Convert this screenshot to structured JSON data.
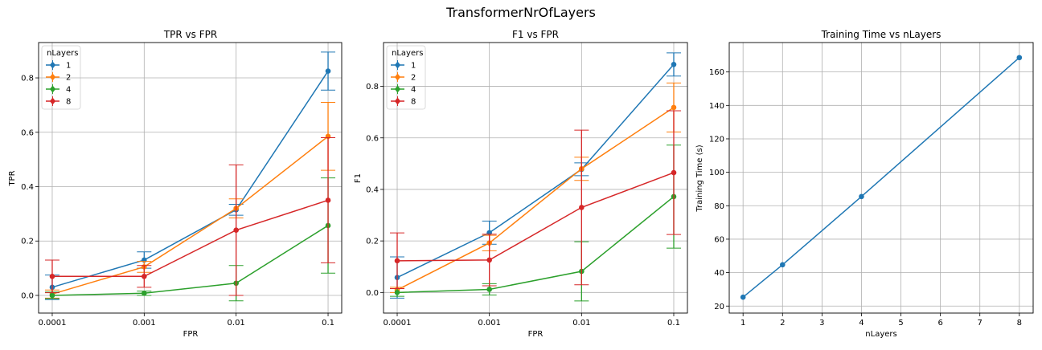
{
  "figure": {
    "title": "TransformerNrOfLayers"
  },
  "chart_data": [
    {
      "type": "line",
      "title": "TPR vs FPR",
      "xlabel": "FPR",
      "ylabel": "TPR",
      "x_ticks": [
        "0.0001",
        "0.001",
        "0.01",
        "0.1"
      ],
      "x": [
        0.0001,
        0.001,
        0.01,
        0.1
      ],
      "y_ticks": [
        0.0,
        0.2,
        0.4,
        0.6,
        0.8
      ],
      "y_tick_labels": [
        "0.0",
        "0.2",
        "0.4",
        "0.6",
        "0.8"
      ],
      "ylim": [
        -0.065,
        0.93
      ],
      "grid": true,
      "legend": {
        "title": "nLayers",
        "placement": "top-left"
      },
      "series": [
        {
          "name": "1",
          "color": "#1f77b4",
          "values": [
            0.03,
            0.13,
            0.315,
            0.825
          ],
          "err": [
            0.045,
            0.03,
            0.02,
            0.07
          ]
        },
        {
          "name": "2",
          "color": "#ff7f0e",
          "values": [
            0.005,
            0.105,
            0.32,
            0.585
          ],
          "err": [
            0.015,
            0.02,
            0.035,
            0.125
          ]
        },
        {
          "name": "4",
          "color": "#2ca02c",
          "values": [
            0.0,
            0.008,
            0.045,
            0.257
          ],
          "err": [
            0.012,
            0.008,
            0.065,
            0.175
          ]
        },
        {
          "name": "8",
          "color": "#d62728",
          "values": [
            0.07,
            0.07,
            0.24,
            0.35
          ],
          "err": [
            0.06,
            0.04,
            0.24,
            0.23
          ]
        }
      ]
    },
    {
      "type": "line",
      "title": "F1 vs FPR",
      "xlabel": "FPR",
      "ylabel": "F1",
      "x_ticks": [
        "0.0001",
        "0.001",
        "0.01",
        "0.1"
      ],
      "x": [
        0.0001,
        0.001,
        0.01,
        0.1
      ],
      "y_ticks": [
        0.0,
        0.2,
        0.4,
        0.6,
        0.8
      ],
      "y_tick_labels": [
        "0.0",
        "0.2",
        "0.4",
        "0.6",
        "0.8"
      ],
      "ylim": [
        -0.08,
        0.97
      ],
      "grid": true,
      "legend": {
        "title": "nLayers",
        "placement": "top-left"
      },
      "series": [
        {
          "name": "1",
          "color": "#1f77b4",
          "values": [
            0.058,
            0.232,
            0.478,
            0.885
          ],
          "err": [
            0.08,
            0.045,
            0.025,
            0.045
          ]
        },
        {
          "name": "2",
          "color": "#ff7f0e",
          "values": [
            0.01,
            0.192,
            0.48,
            0.718
          ],
          "err": [
            0.01,
            0.03,
            0.045,
            0.095
          ]
        },
        {
          "name": "4",
          "color": "#2ca02c",
          "values": [
            0.0,
            0.012,
            0.082,
            0.372
          ],
          "err": [
            0.015,
            0.022,
            0.115,
            0.2
          ]
        },
        {
          "name": "8",
          "color": "#d62728",
          "values": [
            0.123,
            0.126,
            0.33,
            0.465
          ],
          "err": [
            0.108,
            0.1,
            0.3,
            0.24
          ]
        }
      ]
    },
    {
      "type": "line",
      "title": "Training Time vs nLayers",
      "xlabel": "nLayers",
      "ylabel": "Training Time (s)",
      "x_ticks": [
        "1",
        "2",
        "3",
        "4",
        "5",
        "6",
        "7",
        "8"
      ],
      "x": [
        1,
        2,
        4,
        8
      ],
      "xlim": [
        0.65,
        8.35
      ],
      "y_ticks": [
        20,
        40,
        60,
        80,
        100,
        120,
        140,
        160
      ],
      "y_tick_labels": [
        "20",
        "40",
        "60",
        "80",
        "100",
        "120",
        "140",
        "160"
      ],
      "ylim": [
        15.8,
        177.6
      ],
      "grid": true,
      "series": [
        {
          "color": "#1f77b4",
          "values": [
            25.3,
            44.7,
            85.5,
            168.6
          ]
        }
      ]
    }
  ]
}
